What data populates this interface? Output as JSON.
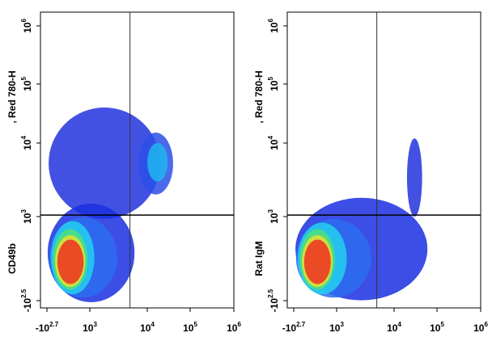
{
  "chart_data": [
    {
      "type": "density",
      "ylabel_parts": [
        "CD49b",
        ", Red 780-H"
      ],
      "xlim": [
        -3600,
        1000000
      ],
      "ylim": [
        -950,
        1700000
      ],
      "xticks": [
        {
          "value": -501,
          "label": "-10",
          "sup": "2.7"
        },
        {
          "value": 1000,
          "label": "10",
          "sup": "3"
        },
        {
          "value": 10000,
          "label": "10",
          "sup": "4"
        },
        {
          "value": 100000,
          "label": "10",
          "sup": "5"
        },
        {
          "value": 1000000,
          "label": "10",
          "sup": "6"
        }
      ],
      "yticks": [
        {
          "value": -316,
          "label": "-10",
          "sup": "2.5"
        },
        {
          "value": 1000,
          "label": "10",
          "sup": "3"
        },
        {
          "value": 10000,
          "label": "10",
          "sup": "4"
        },
        {
          "value": 100000,
          "label": "10",
          "sup": "5"
        },
        {
          "value": 1000000,
          "label": "10",
          "sup": "6"
        }
      ],
      "gate_x": 5000,
      "gate_y": 1050,
      "clusters": [
        {
          "x": [
            -300,
            20000
          ],
          "y": [
            700,
            40000
          ],
          "color": "#2233dd"
        },
        {
          "x": [
            -400,
            6000
          ],
          "y": [
            -400,
            1500
          ],
          "color": "#1a2fe0"
        },
        {
          "x": [
            -300,
            3000
          ],
          "y": [
            -200,
            900
          ],
          "color": "#2a6df0"
        },
        {
          "x": [
            7000,
            40000
          ],
          "y": [
            2000,
            15000
          ],
          "color": "#2a50e8"
        },
        {
          "x": [
            10000,
            30000
          ],
          "y": [
            3000,
            10000
          ],
          "color": "#1fb5f0"
        },
        {
          "x": [
            -150,
            1200
          ],
          "y": [
            -120,
            500
          ],
          "color": "#24d0f0"
        },
        {
          "x": [
            -80,
            500
          ],
          "y": [
            -60,
            150
          ],
          "color": "#4fe07a"
        },
        {
          "x": [
            -40,
            250
          ],
          "y": [
            -40,
            60
          ],
          "color": "#e6e030"
        },
        {
          "x": [
            -20,
            150
          ],
          "y": [
            -25,
            30
          ],
          "color": "#ee3020"
        }
      ]
    },
    {
      "type": "density",
      "ylabel_parts": [
        "Rat IgM",
        ", Red 780-H"
      ],
      "xlim": [
        -3600,
        1000000
      ],
      "ylim": [
        -950,
        1700000
      ],
      "xticks": [
        {
          "value": -501,
          "label": "-10",
          "sup": "2.7"
        },
        {
          "value": 1000,
          "label": "10",
          "sup": "3"
        },
        {
          "value": 10000,
          "label": "10",
          "sup": "4"
        },
        {
          "value": 100000,
          "label": "10",
          "sup": "5"
        },
        {
          "value": 1000000,
          "label": "10",
          "sup": "6"
        }
      ],
      "yticks": [
        {
          "value": -316,
          "label": "-10",
          "sup": "2.5"
        },
        {
          "value": 1000,
          "label": "10",
          "sup": "3"
        },
        {
          "value": 10000,
          "label": "10",
          "sup": "4"
        },
        {
          "value": 100000,
          "label": "10",
          "sup": "5"
        },
        {
          "value": 1000000,
          "label": "10",
          "sup": "6"
        }
      ],
      "gate_x": 5000,
      "gate_y": 1050,
      "clusters": [
        {
          "x": [
            -300,
            60000
          ],
          "y": [
            -300,
            1800
          ],
          "color": "#1a2fe0"
        },
        {
          "x": [
            20000,
            45000
          ],
          "y": [
            1000,
            12000
          ],
          "color": "#2233dd"
        },
        {
          "x": [
            -250,
            4000
          ],
          "y": [
            -200,
            700
          ],
          "color": "#2a6df0"
        },
        {
          "x": [
            -150,
            1500
          ],
          "y": [
            -120,
            400
          ],
          "color": "#24d0f0"
        },
        {
          "x": [
            -80,
            600
          ],
          "y": [
            -60,
            150
          ],
          "color": "#4fe07a"
        },
        {
          "x": [
            -40,
            300
          ],
          "y": [
            -40,
            60
          ],
          "color": "#e6e030"
        },
        {
          "x": [
            -20,
            170
          ],
          "y": [
            -25,
            30
          ],
          "color": "#ee3020"
        }
      ]
    }
  ]
}
